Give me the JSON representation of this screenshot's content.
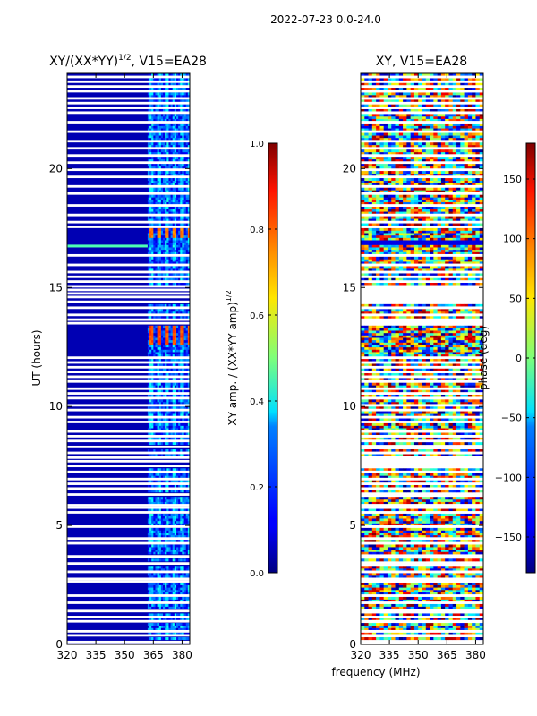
{
  "figure_title": "2022-07-23 0.0-24.0",
  "xlabel_shared": "frequency (MHz)",
  "colors": {
    "jet_low": "#00007f",
    "jet_high": "#7f0000",
    "flagged": "#ffffff"
  },
  "chart_data": [
    {
      "type": "heatmap",
      "title_text": "XY/(XX*YY)",
      "title_exponent": "1/2",
      "title_suffix": ", V15=EA28",
      "xlabel": "",
      "ylabel": "UT (hours)",
      "xlim": [
        320,
        384
      ],
      "ylim": [
        0,
        24
      ],
      "xticks": [
        320,
        335,
        350,
        365,
        380
      ],
      "yticks": [
        0,
        5,
        10,
        15,
        20
      ],
      "colorbar": {
        "label_text": "XY amp. / (XX*YY amp)",
        "label_exponent": "1/2",
        "range": [
          0.0,
          1.0
        ],
        "ticks": [
          "0.0",
          "0.2",
          "0.4",
          "0.6",
          "0.8",
          "1.0"
        ],
        "colormap": "jet"
      },
      "features": {
        "active_band_mhz": [
          362,
          384
        ],
        "background_value": 0.05,
        "band_value": 0.3,
        "high_amp_blocks": [
          {
            "t_start": 12.6,
            "t_end": 13.4,
            "value": 0.8
          },
          {
            "t_start": 17.1,
            "t_end": 17.5,
            "value": 0.75
          }
        ],
        "bright_row_hours": [
          16.75
        ]
      }
    },
    {
      "type": "heatmap",
      "title_text": "XY, V15=EA28",
      "xlabel": "frequency (MHz)",
      "ylabel": "",
      "xlim": [
        320,
        384
      ],
      "ylim": [
        0,
        24
      ],
      "xticks": [
        320,
        335,
        350,
        365,
        380
      ],
      "yticks": [
        0,
        5,
        10,
        15,
        20
      ],
      "colorbar": {
        "label_text": "phase (deg)",
        "range": [
          -180,
          180
        ],
        "ticks": [
          "−150",
          "−100",
          "−50",
          "0",
          "50",
          "100",
          "150"
        ],
        "colormap": "jet"
      },
      "features": {
        "value_range_deg": [
          -180,
          180
        ],
        "blue_band_hours": [
          16.8,
          17.0
        ]
      }
    }
  ],
  "flagged_time_rows": [
    0.1,
    0.38,
    0.55,
    0.97,
    1.15,
    1.4,
    1.75,
    2.05,
    2.65,
    2.75,
    3.05,
    3.4,
    3.7,
    4.25,
    4.45,
    4.95,
    5.55,
    5.75,
    5.85,
    6.3,
    6.55,
    6.75,
    6.95,
    7.25,
    7.5,
    7.7,
    7.85,
    8.05,
    8.3,
    8.55,
    8.75,
    8.95,
    9.35,
    9.55,
    9.85,
    10.05,
    10.35,
    10.55,
    10.75,
    11.05,
    11.25,
    11.45,
    11.65,
    11.85,
    12.05,
    13.5,
    13.65,
    13.85,
    14.15,
    14.4,
    14.6,
    14.75,
    14.9,
    15.05,
    15.25,
    15.45,
    15.65,
    15.95,
    16.35,
    17.55,
    17.75,
    18.05,
    18.45,
    18.95,
    19.25,
    19.65,
    19.95,
    20.25,
    20.55,
    20.85,
    21.15,
    21.55,
    21.95,
    22.35,
    22.55,
    22.75,
    22.95,
    23.25,
    23.45,
    23.65,
    23.85
  ]
}
